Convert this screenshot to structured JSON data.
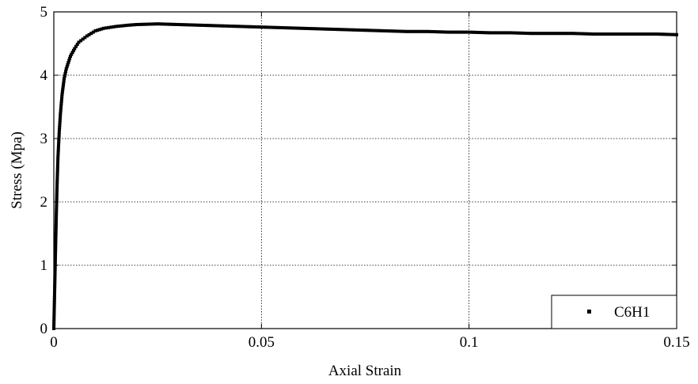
{
  "chart_data": {
    "type": "scatter",
    "xlabel": "Axial Strain",
    "ylabel": "Stress (Mpa)",
    "xlim": [
      0,
      0.15
    ],
    "ylim": [
      0,
      5
    ],
    "x_ticks": [
      "0",
      "0.05",
      "0.1",
      "0.15"
    ],
    "y_ticks": [
      "0",
      "1",
      "2",
      "3",
      "4",
      "5"
    ],
    "grid": true,
    "legend_position": "bottom-right",
    "marker": "square",
    "color": "#000000",
    "series": [
      {
        "name": "C6H1",
        "points": [
          [
            0.0,
            0.0
          ],
          [
            0.0002,
            0.6
          ],
          [
            0.0004,
            1.2
          ],
          [
            0.0006,
            1.8
          ],
          [
            0.0008,
            2.3
          ],
          [
            0.001,
            2.7
          ],
          [
            0.0013,
            3.1
          ],
          [
            0.0016,
            3.4
          ],
          [
            0.002,
            3.7
          ],
          [
            0.0025,
            3.95
          ],
          [
            0.003,
            4.1
          ],
          [
            0.004,
            4.3
          ],
          [
            0.005,
            4.42
          ],
          [
            0.006,
            4.52
          ],
          [
            0.008,
            4.62
          ],
          [
            0.01,
            4.7
          ],
          [
            0.012,
            4.74
          ],
          [
            0.015,
            4.77
          ],
          [
            0.018,
            4.79
          ],
          [
            0.02,
            4.8
          ],
          [
            0.025,
            4.81
          ],
          [
            0.03,
            4.8
          ],
          [
            0.035,
            4.79
          ],
          [
            0.04,
            4.78
          ],
          [
            0.045,
            4.77
          ],
          [
            0.05,
            4.76
          ],
          [
            0.055,
            4.75
          ],
          [
            0.06,
            4.74
          ],
          [
            0.065,
            4.73
          ],
          [
            0.07,
            4.72
          ],
          [
            0.075,
            4.71
          ],
          [
            0.08,
            4.7
          ],
          [
            0.085,
            4.69
          ],
          [
            0.09,
            4.69
          ],
          [
            0.095,
            4.68
          ],
          [
            0.1,
            4.68
          ],
          [
            0.105,
            4.67
          ],
          [
            0.11,
            4.67
          ],
          [
            0.115,
            4.66
          ],
          [
            0.12,
            4.66
          ],
          [
            0.125,
            4.66
          ],
          [
            0.13,
            4.65
          ],
          [
            0.135,
            4.65
          ],
          [
            0.14,
            4.65
          ],
          [
            0.145,
            4.65
          ],
          [
            0.15,
            4.64
          ]
        ]
      }
    ]
  }
}
